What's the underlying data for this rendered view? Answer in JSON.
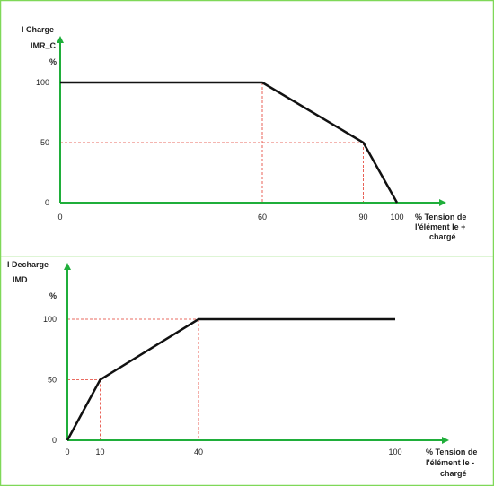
{
  "frame_color": "#7fd858",
  "axis_color": "#1fae3a",
  "guide_color": "#e33b2e",
  "line_color": "#111111",
  "chart_data": [
    {
      "type": "line",
      "title": "I Charge",
      "ylabel": "IMR_C",
      "yunit": "%",
      "xlabel_lines": [
        "% Tension de",
        "l'élément le +",
        "chargé"
      ],
      "x_ticks": [
        "0",
        "60",
        "90",
        "100"
      ],
      "x_tick_values": [
        0,
        60,
        90,
        100
      ],
      "y_ticks": [
        "0",
        "50",
        "100"
      ],
      "y_tick_values": [
        0,
        50,
        100
      ],
      "xlim": [
        0,
        100
      ],
      "ylim": [
        0,
        100
      ],
      "series": [
        {
          "x": [
            0,
            60,
            90,
            100
          ],
          "y": [
            100,
            100,
            50,
            0
          ]
        }
      ],
      "guides": [
        {
          "x": 60,
          "y": 100
        },
        {
          "x": 90,
          "y": 50
        }
      ],
      "grid": false
    },
    {
      "type": "line",
      "title": "I Decharge",
      "ylabel": "IMD",
      "yunit": "%",
      "xlabel_lines": [
        "% Tension de",
        "l'élément le -",
        "chargé"
      ],
      "x_ticks": [
        "0",
        "10",
        "40",
        "100"
      ],
      "x_tick_values": [
        0,
        10,
        40,
        100
      ],
      "y_ticks": [
        "0",
        "50",
        "100"
      ],
      "y_tick_values": [
        0,
        50,
        100
      ],
      "xlim": [
        0,
        100
      ],
      "ylim": [
        0,
        100
      ],
      "series": [
        {
          "x": [
            0,
            10,
            40,
            100
          ],
          "y": [
            0,
            50,
            100,
            100
          ]
        }
      ],
      "guides": [
        {
          "x": 10,
          "y": 50
        },
        {
          "x": 40,
          "y": 100
        }
      ],
      "grid": false
    }
  ]
}
